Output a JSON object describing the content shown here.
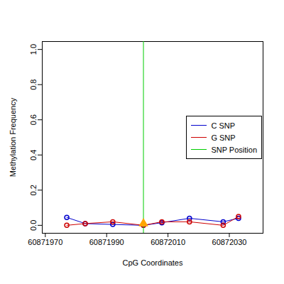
{
  "chart_data": {
    "type": "line",
    "x_label": "CpG Coordinates",
    "y_label": "Methylation Frequency",
    "x": [
      60871977,
      60871983,
      60871992,
      60872002,
      60872008,
      60872017,
      60872028,
      60872033
    ],
    "series": [
      {
        "name": "C SNP",
        "color": "#0000cd",
        "marker": "circle",
        "values": [
          0.045,
          0.01,
          0.005,
          0.0,
          0.015,
          0.04,
          0.02,
          0.04
        ]
      },
      {
        "name": "G SNP",
        "color": "#cd0000",
        "marker": "circle",
        "values": [
          0.0,
          0.01,
          0.02,
          0.0,
          0.02,
          0.02,
          0.0,
          0.05
        ]
      }
    ],
    "snp": {
      "name": "SNP Position",
      "x": 60872002,
      "y": 0.01,
      "color": "#00cd00",
      "marker_color": "orange"
    },
    "xlim": [
      60871969,
      60872041
    ],
    "xticks": [
      60871970,
      60871990,
      60872010,
      60872030
    ],
    "ylim": [
      -0.045,
      1.045
    ],
    "yticks": [
      {
        "value": 0,
        "label": "0.0"
      },
      {
        "value": 0.2,
        "label": "0.2"
      },
      {
        "value": 0.4,
        "label": "0.4"
      },
      {
        "value": 0.6,
        "label": "0.6"
      },
      {
        "value": 0.8,
        "label": "0.8"
      },
      {
        "value": 1,
        "label": "1.0"
      }
    ],
    "legend": "right",
    "grid": false
  }
}
